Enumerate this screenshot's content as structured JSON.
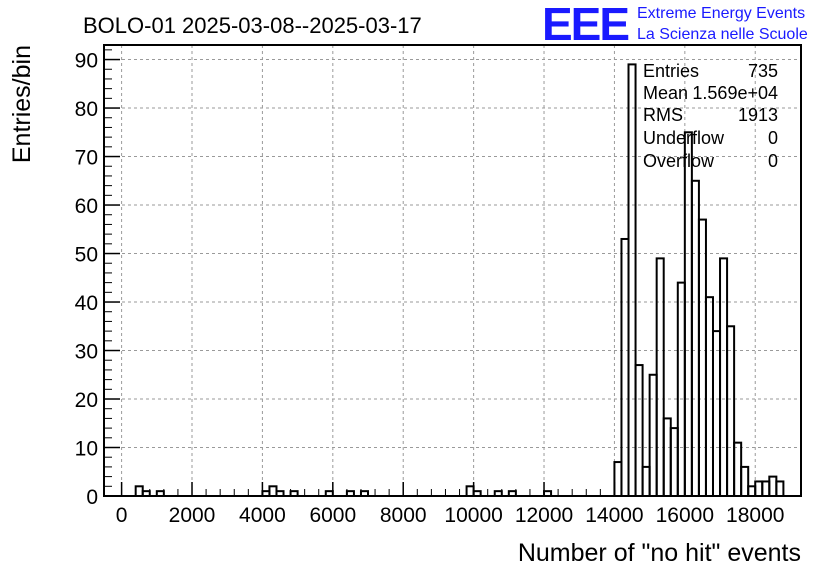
{
  "chart_data": {
    "type": "histogram",
    "title": "BOLO-01 2025-03-08--2025-03-17",
    "xlabel": "Number of \"no hit\" events",
    "ylabel": "Entries/bin",
    "xlim": [
      -500,
      19300
    ],
    "ylim": [
      0,
      93
    ],
    "x_ticks": [
      0,
      2000,
      4000,
      6000,
      8000,
      10000,
      12000,
      14000,
      16000,
      18000
    ],
    "y_ticks": [
      0,
      10,
      20,
      30,
      40,
      50,
      60,
      70,
      80,
      90
    ],
    "grid": true,
    "bin_width": 200,
    "bins": [
      {
        "x": 400,
        "count": 2
      },
      {
        "x": 600,
        "count": 1
      },
      {
        "x": 1000,
        "count": 1
      },
      {
        "x": 4000,
        "count": 1
      },
      {
        "x": 4200,
        "count": 2
      },
      {
        "x": 4400,
        "count": 1
      },
      {
        "x": 4800,
        "count": 1
      },
      {
        "x": 5800,
        "count": 1
      },
      {
        "x": 6400,
        "count": 1
      },
      {
        "x": 6800,
        "count": 1
      },
      {
        "x": 9800,
        "count": 2
      },
      {
        "x": 10000,
        "count": 1
      },
      {
        "x": 10600,
        "count": 1
      },
      {
        "x": 11000,
        "count": 1
      },
      {
        "x": 12000,
        "count": 1
      },
      {
        "x": 14000,
        "count": 7
      },
      {
        "x": 14200,
        "count": 53
      },
      {
        "x": 14400,
        "count": 89
      },
      {
        "x": 14600,
        "count": 27
      },
      {
        "x": 14800,
        "count": 6
      },
      {
        "x": 15000,
        "count": 25
      },
      {
        "x": 15200,
        "count": 49
      },
      {
        "x": 15400,
        "count": 16
      },
      {
        "x": 15600,
        "count": 14
      },
      {
        "x": 15800,
        "count": 44
      },
      {
        "x": 16000,
        "count": 75
      },
      {
        "x": 16200,
        "count": 65
      },
      {
        "x": 16400,
        "count": 57
      },
      {
        "x": 16600,
        "count": 41
      },
      {
        "x": 16800,
        "count": 34
      },
      {
        "x": 17000,
        "count": 49
      },
      {
        "x": 17200,
        "count": 35
      },
      {
        "x": 17400,
        "count": 11
      },
      {
        "x": 17600,
        "count": 6
      },
      {
        "x": 17800,
        "count": 2
      },
      {
        "x": 18000,
        "count": 3
      },
      {
        "x": 18200,
        "count": 3
      },
      {
        "x": 18400,
        "count": 4
      },
      {
        "x": 18600,
        "count": 3
      }
    ],
    "stats": {
      "entries_label": "Entries",
      "entries": "735",
      "mean_label": "Mean",
      "mean": "1.569e+04",
      "rms_label": "RMS",
      "rms": "1913",
      "underflow_label": "Underflow",
      "underflow": "0",
      "overflow_label": "Overflow",
      "overflow": "0"
    }
  },
  "logo": {
    "letters": "EEE",
    "line1": "Extreme Energy Events",
    "line2": "La Scienza nelle Scuole",
    "color": "#1a1aff"
  }
}
